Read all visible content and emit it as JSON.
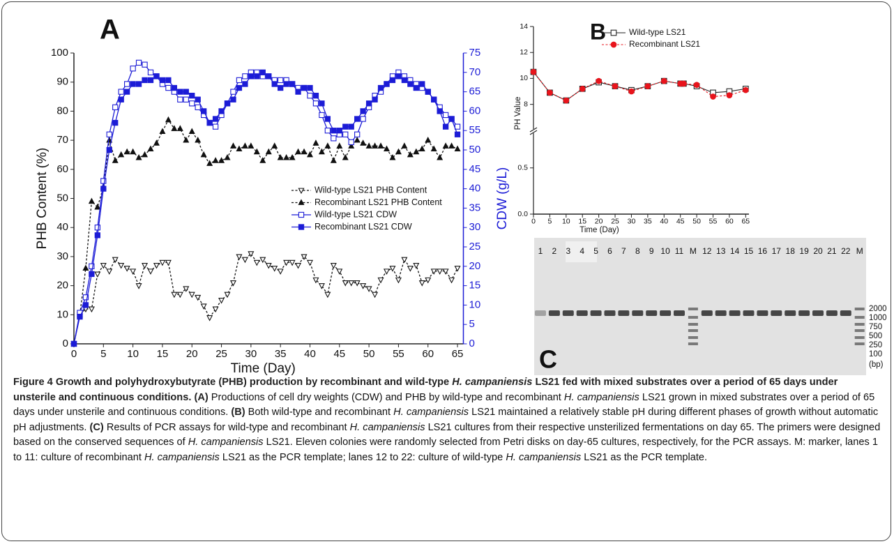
{
  "chart_data": [
    {
      "type": "line",
      "panel_label": "A",
      "x_label": "Time (Day)",
      "y_label": "PHB Content (%)",
      "y2_label": "CDW (g/L)",
      "xlim": [
        0,
        66
      ],
      "xticks": [
        0,
        5,
        10,
        15,
        20,
        25,
        30,
        35,
        40,
        45,
        50,
        55,
        60,
        65
      ],
      "ylim": [
        0,
        100
      ],
      "yticks": [
        0,
        10,
        20,
        30,
        40,
        50,
        60,
        70,
        80,
        90,
        100
      ],
      "y2lim": [
        0,
        75
      ],
      "y2ticks": [
        0,
        5,
        10,
        15,
        20,
        25,
        30,
        35,
        40,
        45,
        50,
        55,
        60,
        65,
        70,
        75
      ],
      "y2_color": "#1c1cd6",
      "legend_position": "center",
      "x": [
        0,
        1,
        2,
        3,
        4,
        5,
        6,
        7,
        8,
        9,
        10,
        11,
        12,
        13,
        14,
        15,
        16,
        17,
        18,
        19,
        20,
        21,
        22,
        23,
        24,
        25,
        26,
        27,
        28,
        29,
        30,
        31,
        32,
        33,
        34,
        35,
        36,
        37,
        38,
        39,
        40,
        41,
        42,
        43,
        44,
        45,
        46,
        47,
        48,
        49,
        50,
        51,
        52,
        53,
        54,
        55,
        56,
        57,
        58,
        59,
        60,
        61,
        62,
        63,
        64,
        65
      ],
      "series": [
        {
          "name": "Wild-type LS21 PHB Content",
          "color": "#111111",
          "marker": "triangle-down-open",
          "dash": true,
          "values": [
            0,
            10,
            12,
            12,
            24,
            27,
            25,
            29,
            27,
            26,
            25,
            20,
            27,
            25,
            27,
            28,
            28,
            17,
            17,
            19,
            17,
            16,
            13,
            9,
            12,
            15,
            17,
            21,
            30,
            29,
            31,
            28,
            29,
            27,
            26,
            25,
            28,
            28,
            27,
            30,
            28,
            22,
            20,
            17,
            27,
            25,
            21,
            21,
            21,
            20,
            19,
            17,
            22,
            25,
            26,
            22,
            29,
            26,
            27,
            21,
            22,
            25,
            25,
            25,
            22,
            26
          ]
        },
        {
          "name": "Recombinant LS21 PHB Content",
          "color": "#111111",
          "marker": "triangle-up",
          "dash": true,
          "values": [
            0,
            10,
            26,
            49,
            47,
            54,
            70,
            63,
            65,
            66,
            66,
            64,
            65,
            67,
            69,
            73,
            77,
            74,
            74,
            70,
            73,
            70,
            65,
            62,
            63,
            63,
            64,
            68,
            67,
            68,
            68,
            66,
            63,
            66,
            68,
            64,
            64,
            64,
            66,
            66,
            65,
            69,
            66,
            68,
            63,
            68,
            64,
            68,
            70,
            69,
            68,
            68,
            68,
            67,
            64,
            66,
            68,
            65,
            66,
            67,
            70,
            67,
            64,
            68,
            68,
            67
          ]
        },
        {
          "name": "Wild-type LS21 CDW",
          "color": "#1c1cd6",
          "marker": "square-open",
          "dash": false,
          "axis": "y2",
          "values": [
            0,
            8,
            12,
            20,
            30,
            42,
            54,
            61,
            65,
            67,
            71,
            72.5,
            72,
            70,
            69,
            67,
            66,
            65,
            63,
            63,
            62,
            61,
            59,
            57,
            56,
            59,
            62,
            65,
            68,
            69,
            70,
            70,
            69,
            69,
            68,
            68,
            68,
            67,
            66,
            66,
            64,
            62,
            59,
            55,
            53,
            54,
            54,
            52,
            54,
            58,
            61,
            64,
            65,
            67,
            69,
            70,
            69,
            68,
            67,
            66,
            65,
            63,
            61,
            59,
            58,
            56
          ]
        },
        {
          "name": "Recombinant LS21 CDW",
          "color": "#1c1cd6",
          "marker": "square",
          "dash": false,
          "axis": "y2",
          "values": [
            0,
            7,
            10,
            18,
            28,
            40,
            50,
            57,
            63,
            65,
            67,
            67,
            68,
            68,
            69,
            68,
            68,
            66,
            65,
            65,
            64,
            63,
            60,
            57,
            58,
            60,
            62,
            63,
            66,
            67,
            69,
            69,
            70,
            69,
            67,
            66,
            67,
            67,
            65,
            66,
            66,
            64,
            62,
            58,
            55,
            55,
            56,
            56,
            58,
            60,
            62,
            63,
            66,
            67,
            68,
            69,
            68,
            67,
            66,
            67,
            65,
            63,
            60,
            56,
            58,
            54
          ]
        }
      ]
    },
    {
      "type": "line",
      "panel_label": "B",
      "x_label": "Time (Day)",
      "y_label": "PH Value",
      "xlim": [
        0,
        66
      ],
      "xticks": [
        0,
        5,
        10,
        15,
        20,
        25,
        30,
        35,
        40,
        45,
        50,
        55,
        60,
        65
      ],
      "ylim": [
        0,
        14
      ],
      "y_break": [
        0.875,
        6.1
      ],
      "yticks": [
        {
          "value": 0,
          "label": "0.0"
        },
        0.5,
        8,
        10,
        12,
        14
      ],
      "legend_position": "upper right",
      "x": [
        0,
        5,
        10,
        15,
        20,
        25,
        30,
        35,
        40,
        45,
        46,
        50,
        55,
        60,
        65
      ],
      "series": [
        {
          "name": "Wild-type LS21",
          "color": "#222222",
          "marker": "square-open",
          "dash": false,
          "values": [
            10.5,
            8.9,
            8.3,
            9.2,
            9.7,
            9.4,
            9.1,
            9.4,
            9.8,
            9.6,
            9.6,
            9.4,
            8.9,
            9.0,
            9.2
          ]
        },
        {
          "name": "Recombinant LS21",
          "color": "#e8141c",
          "marker": "circle",
          "dash": true,
          "values": [
            10.5,
            8.9,
            8.3,
            9.2,
            9.8,
            9.4,
            9.0,
            9.4,
            9.8,
            9.6,
            9.6,
            9.5,
            8.6,
            8.7,
            9.1
          ]
        }
      ]
    }
  ],
  "gel": {
    "panel_label": "C",
    "lanes": [
      "1",
      "2",
      "3",
      "4",
      "5",
      "6",
      "7",
      "8",
      "9",
      "10",
      "11",
      "M",
      "12",
      "13",
      "14",
      "15",
      "16",
      "17",
      "18",
      "19",
      "20",
      "21",
      "22",
      "M"
    ],
    "marker_labels": [
      "2000",
      "1000",
      "750",
      "500",
      "250",
      "100"
    ],
    "unit": "(bp)"
  },
  "caption": {
    "parts": [
      {
        "text": "Figure 4 Growth and polyhydroxybutyrate (PHB) production by recombinant and wild-type ",
        "style": "bold"
      },
      {
        "text": "H. campaniensis",
        "style": "bold-italic"
      },
      {
        "text": " LS21 fed with mixed substrates over a period of 65 days under unsterile and continuous conditions.",
        "style": "bold"
      },
      {
        "text": " (A)",
        "style": "bold"
      },
      {
        "text": " Productions of cell dry weights (CDW) and PHB by wild-type and recombinant ",
        "style": "plain"
      },
      {
        "text": "H. campaniensis",
        "style": "italic"
      },
      {
        "text": " LS21 grown in mixed substrates over a period of 65 days under unsterile and continuous conditions. ",
        "style": "plain"
      },
      {
        "text": "(B)",
        "style": "bold"
      },
      {
        "text": " Both wild-type and recombinant ",
        "style": "plain"
      },
      {
        "text": "H. campaniensis",
        "style": "italic"
      },
      {
        "text": " LS21 maintained a relatively stable pH during different phases of growth without automatic pH adjustments. ",
        "style": "plain"
      },
      {
        "text": "(C)",
        "style": "bold"
      },
      {
        "text": " Results of PCR assays for wild-type and recombinant ",
        "style": "plain"
      },
      {
        "text": "H. campaniensis",
        "style": "italic"
      },
      {
        "text": " LS21 cultures from their respective unsterilized fermentations on day 65. The primers were designed based on the conserved sequences of ",
        "style": "plain"
      },
      {
        "text": "H. campaniensis",
        "style": "italic"
      },
      {
        "text": " LS21. Eleven colonies were randomly selected from Petri disks on day-65 cultures, respectively, for the PCR assays. M: marker, lanes 1 to 11: culture of recombinant ",
        "style": "plain"
      },
      {
        "text": "H. campaniensis",
        "style": "italic"
      },
      {
        "text": " LS21 as the PCR template; lanes 12 to 22: culture of wild-type ",
        "style": "plain"
      },
      {
        "text": "H. campaniensis",
        "style": "italic"
      },
      {
        "text": " LS21 as the PCR template.",
        "style": "plain"
      }
    ]
  }
}
